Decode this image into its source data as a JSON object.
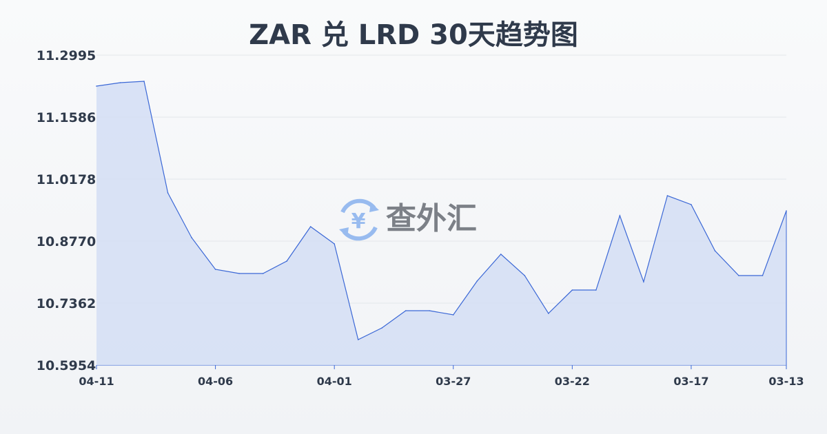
{
  "chart_data": {
    "type": "area",
    "title": "ZAR 兑 LRD 30天趋势图",
    "xlabel": "",
    "ylabel": "",
    "ylim": [
      10.5954,
      11.2995
    ],
    "y_ticks": [
      "11.2995",
      "11.1586",
      "11.0178",
      "10.8770",
      "10.7362",
      "10.5954"
    ],
    "x_ticks": [
      "04-11",
      "04-06",
      "04-01",
      "03-27",
      "03-22",
      "03-17",
      "03-13"
    ],
    "x": [
      "04-11",
      "04-10",
      "04-09",
      "04-08",
      "04-07",
      "04-06",
      "04-05",
      "04-04",
      "04-03",
      "04-02",
      "04-01",
      "03-31",
      "03-30",
      "03-29",
      "03-28",
      "03-27",
      "03-26",
      "03-25",
      "03-24",
      "03-23",
      "03-22",
      "03-21",
      "03-20",
      "03-19",
      "03-18",
      "03-17",
      "03-16",
      "03-15",
      "03-14",
      "03-13"
    ],
    "values": [
      11.2291,
      11.2369,
      11.24,
      10.9866,
      10.8849,
      10.8129,
      10.8035,
      10.8035,
      10.8317,
      10.9099,
      10.8708,
      10.6533,
      10.6799,
      10.719,
      10.719,
      10.7096,
      10.7863,
      10.8473,
      10.7988,
      10.7128,
      10.7659,
      10.7659,
      10.9349,
      10.7847,
      10.9803,
      10.96,
      10.8551,
      10.7988,
      10.7988,
      10.9459
    ],
    "grid": true,
    "colors": {
      "line": "#3a67d6",
      "fill": "#d4def5",
      "grid": "#e3e6ea",
      "text": "#2f3a4b"
    }
  },
  "watermark": {
    "text": "查外汇",
    "icon": "yen-exchange-icon"
  }
}
